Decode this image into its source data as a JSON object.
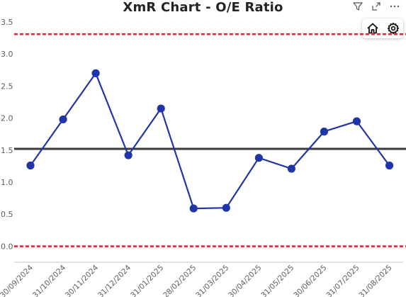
{
  "chart_data": {
    "type": "line",
    "title": "XmR Chart - O/E Ratio",
    "categories": [
      "30/09/2024",
      "31/10/2024",
      "30/11/2024",
      "31/12/2024",
      "31/01/2025",
      "28/02/2025",
      "31/03/2025",
      "30/04/2025",
      "31/05/2025",
      "30/06/2025",
      "31/07/2025",
      "31/08/2025"
    ],
    "series": [
      {
        "values": [
          1.26,
          1.98,
          2.7,
          1.42,
          2.15,
          0.59,
          0.6,
          1.38,
          1.21,
          1.79,
          1.95,
          1.26
        ],
        "color": "#1f35a8"
      }
    ],
    "reference_lines": [
      {
        "value": 3.31,
        "style": "dashed",
        "color": "#e0243c"
      },
      {
        "value": 1.52,
        "style": "solid",
        "color": "#3a3a3a"
      },
      {
        "value": 0.0,
        "style": "dashed",
        "color": "#e0243c"
      }
    ],
    "yticks": [
      "0.0",
      "0.5",
      "1.0",
      "1.5",
      "2.0",
      "2.5",
      "3.0",
      "3.5"
    ],
    "ylim": [
      -0.25,
      3.6
    ],
    "xlabel": "",
    "ylabel": "",
    "grid": false
  },
  "icons": {
    "filter": "filter-icon",
    "focus": "focus-mode-icon",
    "more": "more-options-icon",
    "home": "home-icon",
    "settings": "gear-icon"
  }
}
